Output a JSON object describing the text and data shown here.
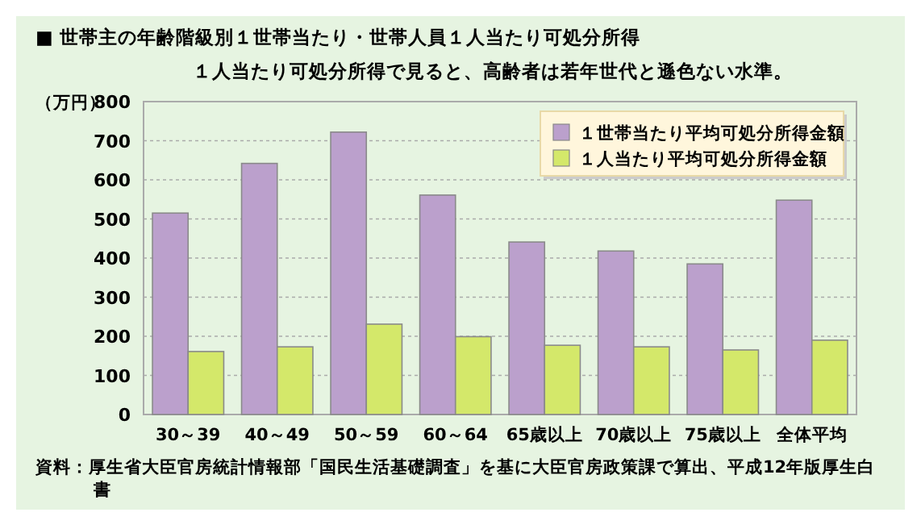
{
  "chart_data": {
    "type": "bar",
    "title": "■ 世帯主の年齢階級別１世帯当たり・世帯人員１人当たり可処分所得",
    "subtitle": "１人当たり可処分所得で見ると、高齢者は若年世代と遜色ない水準。",
    "ylabel": "（万円）",
    "categories": [
      "30～39",
      "40～49",
      "50～59",
      "60～64",
      "65歳以上",
      "70歳以上",
      "75歳以上",
      "全体平均"
    ],
    "series": [
      {
        "name": "１世帯当たり平均可処分所得金額",
        "color": "#bba0cc",
        "values": [
          515,
          642,
          722,
          561,
          441,
          418,
          385,
          548
        ]
      },
      {
        "name": "１人当たり平均可処分所得金額",
        "color": "#d4e86a",
        "values": [
          161,
          173,
          231,
          199,
          177,
          173,
          165,
          190
        ]
      }
    ],
    "ylim": [
      0,
      800
    ],
    "yticks": [
      0,
      100,
      200,
      300,
      400,
      500,
      600,
      700,
      800
    ],
    "grid": "y",
    "legend": "top right",
    "annotations": [
      "資料：厚生省大臣官房統計情報部「国民生活基礎調査」を基に大臣官房政策課で算出、平成12年版厚生白書"
    ]
  }
}
